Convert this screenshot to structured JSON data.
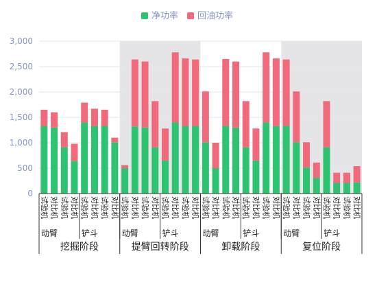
{
  "chart_data": {
    "type": "bar",
    "stacked": true,
    "legend_position": "top-center",
    "grid": true,
    "ylim": [
      0,
      3000
    ],
    "yticks": [
      "0",
      "500",
      "1,000",
      "1,500",
      "2,000",
      "2,500",
      "3,000"
    ],
    "categories": [
      "试验机",
      "对比机",
      "试验机",
      "对比机",
      "试验机",
      "对比机",
      "试验机",
      "对比机",
      "试验机",
      "对比机",
      "试验机",
      "对比机",
      "试验机",
      "对比机",
      "试验机",
      "对比机",
      "试验机",
      "对比机",
      "试验机",
      "对比机",
      "试验机",
      "对比机",
      "试验机",
      "对比机",
      "试验机",
      "对比机",
      "试验机",
      "对比机",
      "试验机",
      "对比机",
      "试验机",
      "对比机"
    ],
    "series": [
      {
        "name": "净功率",
        "color": "#2dc371",
        "values": [
          1330,
          1300,
          910,
          640,
          1400,
          1330,
          1330,
          1010,
          500,
          1320,
          1300,
          910,
          650,
          1400,
          1330,
          1330,
          1010,
          500,
          1330,
          1300,
          910,
          650,
          1400,
          1330,
          1330,
          1010,
          510,
          310,
          910,
          210,
          210,
          220
        ]
      },
      {
        "name": "回油功率",
        "color": "#f06a7b",
        "values": [
          320,
          300,
          300,
          340,
          390,
          340,
          320,
          90,
          60,
          1320,
          1300,
          910,
          630,
          1380,
          1330,
          1310,
          1000,
          500,
          1320,
          1300,
          910,
          630,
          1380,
          1330,
          1310,
          1000,
          500,
          300,
          910,
          200,
          200,
          320
        ]
      }
    ],
    "subgroups": [
      {
        "label": "动臂",
        "start": 0,
        "end": 3
      },
      {
        "label": "铲斗",
        "start": 4,
        "end": 7
      },
      {
        "label": "动臂",
        "start": 8,
        "end": 11
      },
      {
        "label": "铲斗",
        "start": 12,
        "end": 15
      },
      {
        "label": "动臂",
        "start": 16,
        "end": 19
      },
      {
        "label": "铲斗",
        "start": 20,
        "end": 23
      },
      {
        "label": "动臂",
        "start": 24,
        "end": 27
      },
      {
        "label": "铲斗",
        "start": 28,
        "end": 31
      }
    ],
    "groups": [
      {
        "label": "挖掘阶段",
        "start": 0,
        "end": 7,
        "shaded": false
      },
      {
        "label": "提臂回转阶段",
        "start": 8,
        "end": 15,
        "shaded": true
      },
      {
        "label": "卸载阶段",
        "start": 16,
        "end": 23,
        "shaded": false
      },
      {
        "label": "复位阶段",
        "start": 24,
        "end": 31,
        "shaded": true
      }
    ],
    "colors": {
      "axis_label": "#8a93c9",
      "grid": "#e3e5f2",
      "shade": "#e5e5e8",
      "category_text": "#222222"
    }
  }
}
